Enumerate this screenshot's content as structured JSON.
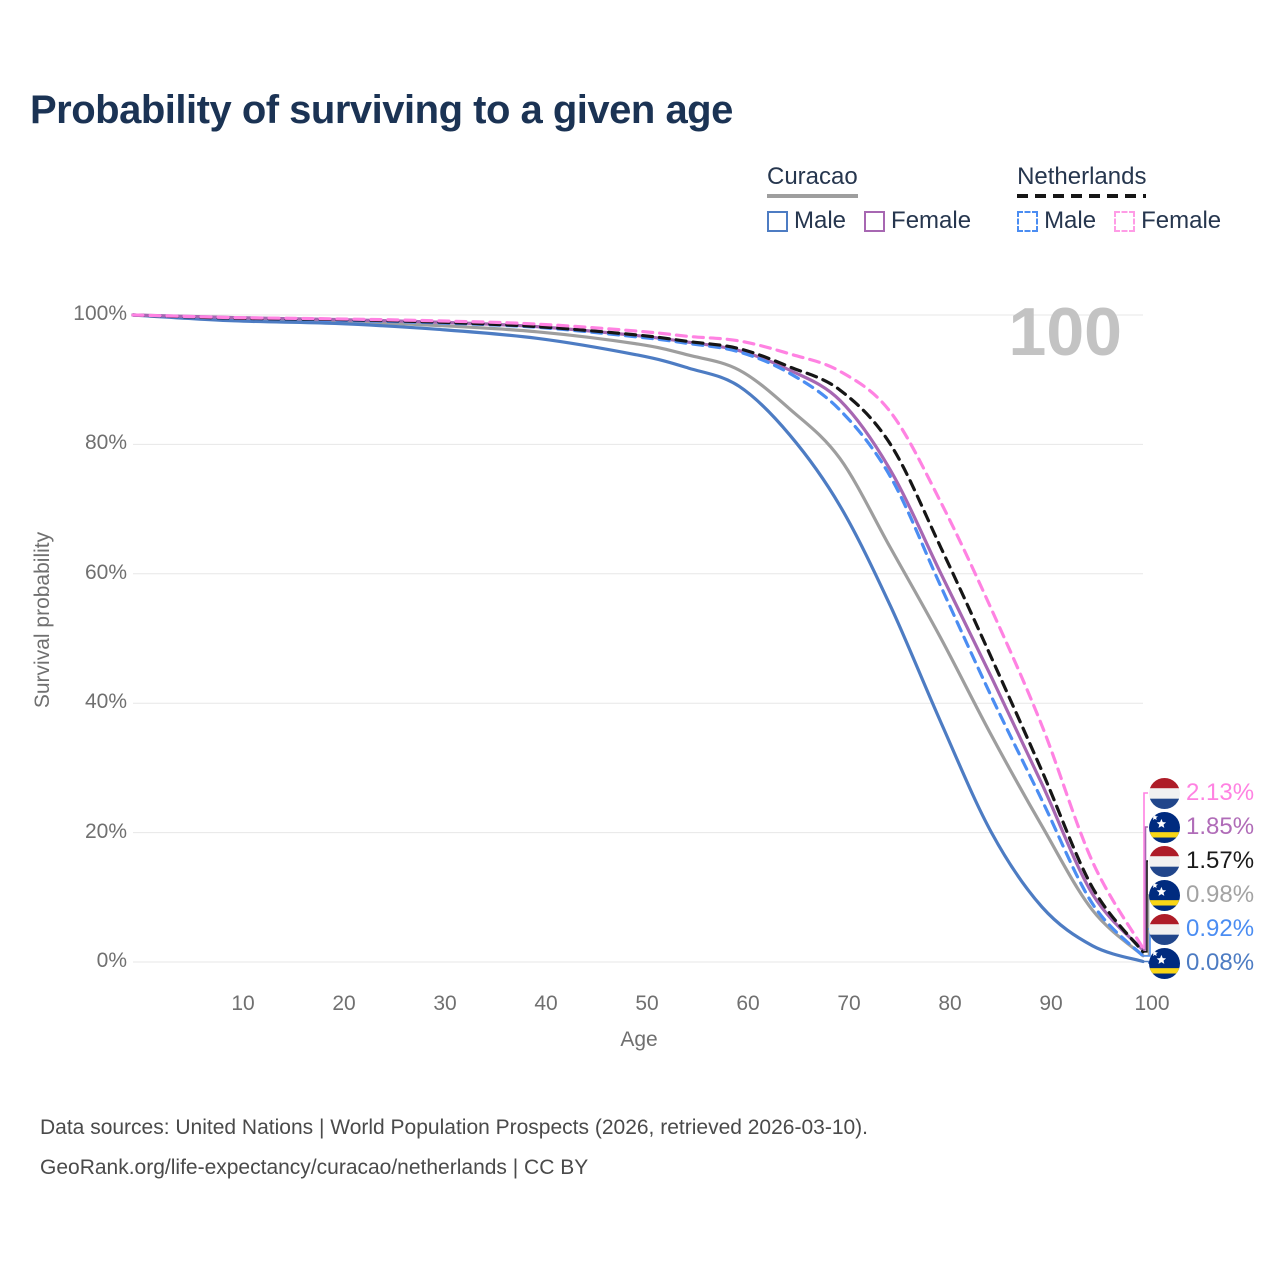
{
  "title": "Probability of surviving to a given age",
  "watermark": "100",
  "legend": {
    "groups": [
      {
        "label": "Curacao",
        "line_style": "solid",
        "line_color": "#9e9e9e",
        "items": [
          {
            "label": "Male",
            "color": "#4d7cc3",
            "dashed": false
          },
          {
            "label": "Female",
            "color": "#a767b2",
            "dashed": false
          }
        ]
      },
      {
        "label": "Netherlands",
        "line_style": "dashed",
        "line_color": "#161616",
        "items": [
          {
            "label": "Male",
            "color": "#4b8df2",
            "dashed": true
          },
          {
            "label": "Female",
            "color": "#ff82e2",
            "dashed": true
          }
        ]
      }
    ]
  },
  "axes": {
    "x_label": "Age",
    "y_label": "Survival probability",
    "x_ticks": [
      "10",
      "20",
      "30",
      "40",
      "50",
      "60",
      "70",
      "80",
      "90",
      "100"
    ],
    "y_ticks": [
      "0%",
      "20%",
      "40%",
      "60%",
      "80%",
      "100%"
    ]
  },
  "chart_data": {
    "type": "line",
    "title": "Probability of surviving to a given age",
    "xlabel": "Age",
    "ylabel": "Survival probability",
    "xlim": [
      0,
      100
    ],
    "ylim": [
      0,
      100
    ],
    "grid": "horizontal-only",
    "x_tick_values": [
      10,
      20,
      30,
      40,
      50,
      60,
      70,
      80,
      90,
      100
    ],
    "y_tick_values": [
      0,
      20,
      40,
      60,
      80,
      100
    ],
    "x": [
      0,
      10,
      20,
      30,
      40,
      50,
      55,
      60,
      65,
      70,
      75,
      80,
      85,
      90,
      95,
      100
    ],
    "series": [
      {
        "name": "Curacao Total",
        "country": "curacao",
        "sex": "total",
        "color": "#9e9e9e",
        "dashed": false,
        "values": [
          100,
          99.4,
          99.0,
          98.4,
          97.4,
          95.5,
          93.8,
          91.5,
          85.5,
          77.8,
          64,
          50,
          35,
          21,
          8,
          0.98
        ]
      },
      {
        "name": "Curacao Male",
        "country": "curacao",
        "sex": "male",
        "color": "#4d7cc3",
        "dashed": false,
        "values": [
          100,
          99.1,
          98.7,
          97.8,
          96.4,
          93.8,
          91.8,
          89.0,
          81.5,
          70.5,
          55,
          37,
          20,
          8.5,
          2.5,
          0.08
        ]
      },
      {
        "name": "Curacao Female",
        "country": "curacao",
        "sex": "female",
        "color": "#a767b2",
        "dashed": false,
        "values": [
          100,
          99.6,
          99.3,
          98.9,
          98.2,
          96.8,
          95.8,
          94.5,
          91.5,
          86.8,
          76,
          60,
          44,
          27.5,
          10.5,
          1.85
        ]
      },
      {
        "name": "Netherlands Male",
        "country": "netherlands",
        "sex": "male",
        "color": "#4b8df2",
        "dashed": true,
        "values": [
          100,
          99.5,
          99.2,
          98.8,
          98.1,
          96.6,
          95.6,
          94.3,
          91,
          85.3,
          75,
          58,
          41,
          25,
          9,
          0.92
        ]
      },
      {
        "name": "Netherlands Total",
        "country": "netherlands",
        "sex": "total",
        "color": "#161616",
        "dashed": true,
        "values": [
          100,
          99.5,
          99.3,
          98.9,
          98.2,
          96.9,
          95.9,
          94.8,
          92,
          88.4,
          80,
          64,
          47,
          29.5,
          11.5,
          1.57
        ]
      },
      {
        "name": "Netherlands Female",
        "country": "netherlands",
        "sex": "female",
        "color": "#ff82e2",
        "dashed": true,
        "values": [
          100,
          99.6,
          99.4,
          99.1,
          98.6,
          97.5,
          96.7,
          96,
          94,
          91.3,
          85,
          71,
          54.5,
          36.5,
          15.5,
          2.13
        ]
      }
    ],
    "legend_position": "top-right"
  },
  "end_labels": [
    {
      "value": "2.13%",
      "color": "#ff82e2",
      "flag": "netherlands",
      "series_name": "Netherlands Female"
    },
    {
      "value": "1.85%",
      "color": "#b06cb8",
      "flag": "curacao",
      "series_name": "Curacao Female"
    },
    {
      "value": "1.57%",
      "color": "#1a1a1a",
      "flag": "netherlands",
      "series_name": "Netherlands Total"
    },
    {
      "value": "0.98%",
      "color": "#a3a3a3",
      "flag": "curacao",
      "series_name": "Curacao Total"
    },
    {
      "value": "0.92%",
      "color": "#4b8df2",
      "flag": "netherlands",
      "series_name": "Netherlands Male"
    },
    {
      "value": "0.08%",
      "color": "#4d7cc3",
      "flag": "curacao",
      "series_name": "Curacao Male"
    }
  ],
  "flag_colors": {
    "netherlands": {
      "red": "#AE1C28",
      "white": "#f1f1f1",
      "blue": "#21468B"
    },
    "curacao": {
      "blue": "#002B7F",
      "yellow": "#F9D616",
      "star": "#ffffff"
    }
  },
  "footer": {
    "line1": "Data sources: United Nations | World Population Prospects (2026, retrieved 2026-03-10).",
    "line2": "GeoRank.org/life-expectancy/curacao/netherlands | CC BY"
  }
}
